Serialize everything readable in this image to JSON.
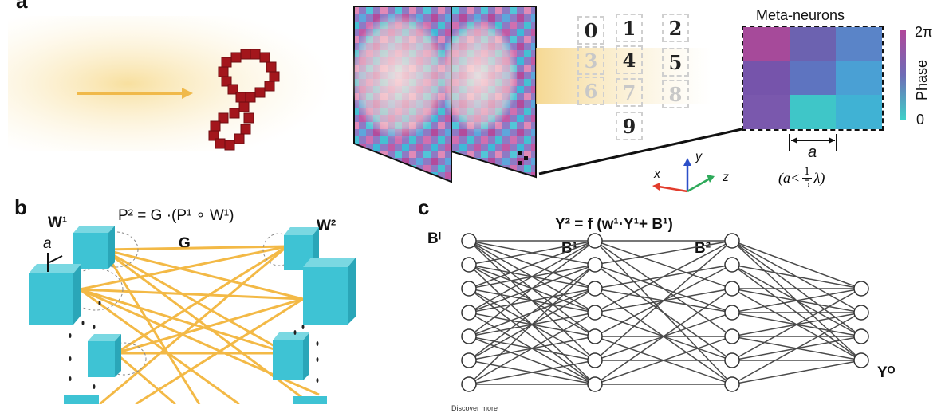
{
  "panel_a": {
    "letter": "a",
    "digits": [
      "0",
      "1",
      "2",
      "3",
      "4",
      "5",
      "6",
      "7",
      "8",
      "9"
    ],
    "meta_title": "Meta-neurons",
    "cell_colors": [
      [
        "#a64a9a",
        "#6c62b0",
        "#5a84c8"
      ],
      [
        "#7654ab",
        "#5e74c0",
        "#4aa0d4"
      ],
      [
        "#7a58ad",
        "#3fc6c8",
        "#40b2d4"
      ]
    ],
    "colorbar": {
      "top": "2π",
      "title": "Phase",
      "bottom": "0"
    },
    "a_label": "a",
    "constraint": {
      "prefix": "(a<",
      "num": "1",
      "den": "5",
      "suffix": "λ)"
    },
    "axes": {
      "x": "x",
      "y": "y",
      "z": "z"
    }
  },
  "panel_b": {
    "letter": "b",
    "equation": "P² = G ·(P¹ ∘ W¹)",
    "w1": "W¹",
    "w2": "W²",
    "g": "G",
    "a": "a"
  },
  "panel_c": {
    "letter": "c",
    "equation": "Y² = f (w¹·Y¹+ B¹)",
    "b_in": "Bᴵ",
    "b1": "B¹",
    "b2": "B²",
    "y_out": "Yᴼ"
  },
  "footer": "Discover more",
  "colors": {
    "beam": "#f5d27a",
    "cube": "#3ec3d4",
    "link": "#f2b233",
    "net": "#444444"
  }
}
